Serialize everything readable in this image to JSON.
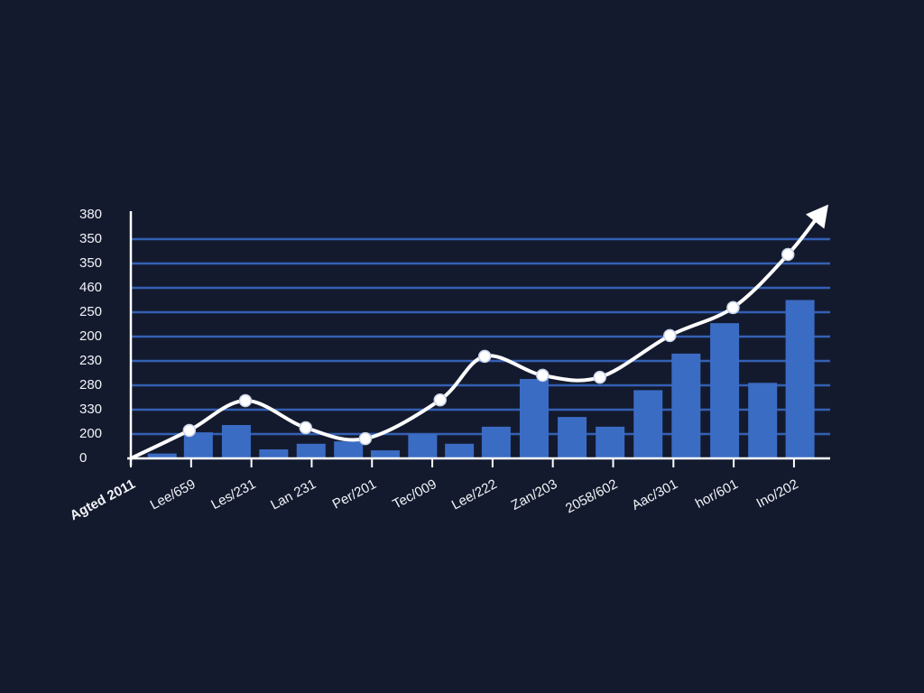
{
  "chart_data": {
    "type": "bar-line",
    "categories": [
      "Agted 2011",
      "Lee/659",
      "Les/231",
      "Lan 231",
      "Per/201",
      "Tec/009",
      "Lee/222",
      "Zan/203",
      "2058/602",
      "Aac/301",
      "hor/601",
      "Ino/202"
    ],
    "xlim": [
      0,
      11.6
    ],
    "ylim": [
      0,
      10
    ],
    "yticks": [
      {
        "value": 0,
        "label": "0"
      },
      {
        "value": 1,
        "label": "200"
      },
      {
        "value": 2,
        "label": "330"
      },
      {
        "value": 3,
        "label": "280"
      },
      {
        "value": 4,
        "label": "230"
      },
      {
        "value": 5,
        "label": "200"
      },
      {
        "value": 6,
        "label": "250"
      },
      {
        "value": 7,
        "label": "460"
      },
      {
        "value": 8,
        "label": "350"
      },
      {
        "value": 9,
        "label": "350"
      },
      {
        "value": 10,
        "label": "380"
      }
    ],
    "grid": true,
    "bars": {
      "color": "#3b6cc4",
      "x": [
        0.52,
        1.12,
        1.75,
        2.37,
        2.99,
        3.61,
        4.22,
        4.84,
        5.45,
        6.06,
        6.69,
        7.32,
        7.95,
        8.58,
        9.21,
        9.85,
        10.48,
        11.1
      ],
      "values": [
        0.2,
        1.07,
        1.37,
        0.37,
        0.6,
        0.7,
        0.33,
        1.0,
        0.6,
        1.3,
        3.26,
        1.7,
        1.3,
        2.8,
        4.3,
        5.55,
        3.1,
        6.5
      ]
    },
    "line": {
      "color": "#ffffff",
      "x": [
        0,
        0.97,
        1.9,
        2.9,
        3.89,
        5.13,
        5.87,
        6.83,
        7.78,
        8.94,
        9.99,
        10.9,
        11.48
      ],
      "values": [
        0,
        1.15,
        2.37,
        1.26,
        0.81,
        2.4,
        4.19,
        3.41,
        3.33,
        5.04,
        6.19,
        8.37,
        10.2
      ]
    }
  }
}
